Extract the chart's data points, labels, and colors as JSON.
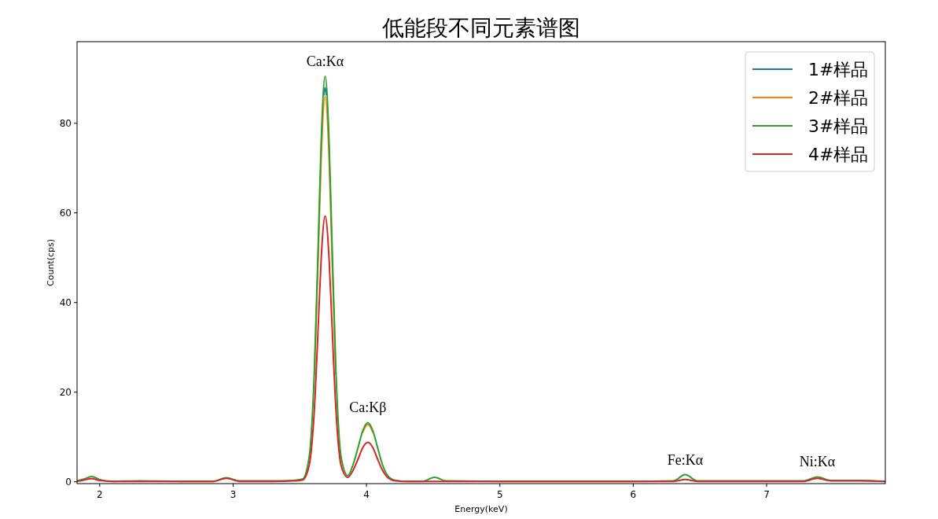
{
  "chart_data": {
    "type": "line",
    "title": "低能段不同元素谱图",
    "xlabel": "Energy(keV)",
    "ylabel": "Count(cps)",
    "x": [
      1.83,
      1.88,
      1.94,
      2.0,
      2.1,
      2.3,
      2.6,
      2.85,
      2.95,
      3.05,
      3.3,
      3.45,
      3.52,
      3.57,
      3.61,
      3.64,
      3.66,
      3.69,
      3.72,
      3.74,
      3.77,
      3.81,
      3.86,
      3.9,
      3.94,
      3.97,
      4.01,
      4.05,
      4.08,
      4.12,
      4.17,
      4.22,
      4.3,
      4.42,
      4.51,
      4.6,
      5.0,
      6.0,
      6.3,
      6.39,
      6.48,
      7.0,
      7.28,
      7.38,
      7.48,
      7.7,
      7.89
    ],
    "series": [
      {
        "name": "1#样品",
        "color": "#1f77b4",
        "x": [
          3.68,
          3.69,
          3.7
        ],
        "values": [
          86.2,
          88,
          86.2
        ]
      },
      {
        "name": "2#样品",
        "color": "#ff7f0e",
        "values": [
          null,
          null,
          null,
          null,
          null,
          null,
          null,
          null,
          null,
          null,
          null,
          null,
          null,
          null,
          23.9,
          52.2,
          71.8,
          86,
          71.8,
          52.2,
          23.9,
          null,
          null,
          null,
          null,
          10.9,
          12.8,
          10.9,
          null,
          null,
          null,
          null,
          null,
          null,
          null,
          null,
          null,
          null,
          null,
          null,
          null,
          null,
          null,
          null,
          null,
          null,
          null
        ]
      },
      {
        "name": "3#样品",
        "color": "#2ca02c",
        "values": [
          0.2,
          0.6,
          1.2,
          0.5,
          0.1,
          0.2,
          0.1,
          0.1,
          0.9,
          0.2,
          0.2,
          0.3,
          0.6,
          5.5,
          25.4,
          55,
          75.6,
          90.5,
          75.6,
          55,
          25.4,
          5.5,
          1.4,
          3.9,
          8.0,
          11.2,
          13.2,
          11.2,
          8.0,
          3.8,
          1.0,
          0.3,
          0.1,
          0.1,
          1.0,
          0.2,
          0.1,
          0.1,
          0.2,
          1.6,
          0.2,
          0.2,
          0.2,
          1.1,
          0.3,
          0.3,
          0.1
        ]
      },
      {
        "name": "4#样品",
        "color": "#d62728",
        "values": [
          0.1,
          0.4,
          0.7,
          0.3,
          0.1,
          0.1,
          0.1,
          0.1,
          0.8,
          0.1,
          0.1,
          0.2,
          0.4,
          3.6,
          16.5,
          36,
          49.5,
          59.3,
          49.5,
          36,
          16.5,
          3.6,
          1.0,
          2.6,
          5.3,
          7.5,
          8.8,
          7.5,
          5.3,
          2.6,
          0.7,
          0.2,
          0.1,
          0.1,
          0.1,
          0.1,
          0.1,
          0.1,
          0.1,
          0.5,
          0.1,
          0.1,
          0.1,
          0.8,
          0.2,
          0.2,
          0.1
        ]
      }
    ],
    "annotations": [
      {
        "text": "Ca:Kα",
        "x": 3.69,
        "y": 90.5
      },
      {
        "text": "Ca:Kβ",
        "x": 4.01,
        "y": 13.2
      },
      {
        "text": "Fe:Kα",
        "x": 6.39,
        "y": 1.6
      },
      {
        "text": "Ni:Kα",
        "x": 7.38,
        "y": 1.1
      }
    ],
    "xlim": [
      1.83,
      7.89
    ],
    "ylim": [
      -0.4,
      98.2
    ],
    "xticks": [
      2,
      3,
      4,
      5,
      6,
      7
    ],
    "yticks": [
      0,
      20,
      40,
      60,
      80
    ],
    "grid": false,
    "legend": "top right"
  }
}
